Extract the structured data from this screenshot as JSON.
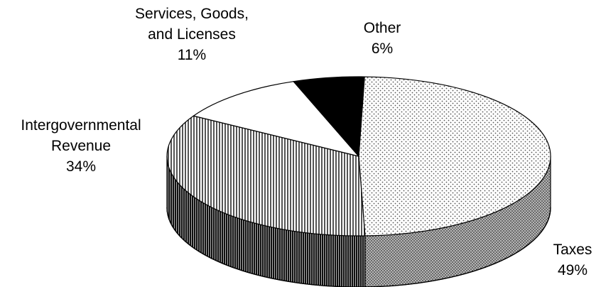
{
  "chart_data": {
    "type": "pie",
    "title": "",
    "three_d": true,
    "slices": [
      {
        "name": "Taxes",
        "value": 49,
        "label_lines": [
          "Taxes",
          "49%"
        ],
        "fill": "dots",
        "colors": {
          "top": "#e6e6e6",
          "side": "#8c8c8c"
        }
      },
      {
        "name": "Intergovernmental Revenue",
        "value": 34,
        "label_lines": [
          "Intergovernmental",
          "Revenue",
          "34%"
        ],
        "fill": "vertical-lines",
        "colors": {
          "top": "#cfcfcf",
          "side": "#5a5a5a"
        }
      },
      {
        "name": "Services, Goods, and Licenses",
        "value": 11,
        "label_lines": [
          "Services, Goods,",
          "and Licenses",
          "11%"
        ],
        "fill": "solid",
        "colors": {
          "top": "#ffffff",
          "side": "#ffffff"
        }
      },
      {
        "name": "Other",
        "value": 6,
        "label_lines": [
          "Other",
          "6%"
        ],
        "fill": "solid",
        "colors": {
          "top": "#000000",
          "side": "#000000"
        }
      }
    ]
  }
}
